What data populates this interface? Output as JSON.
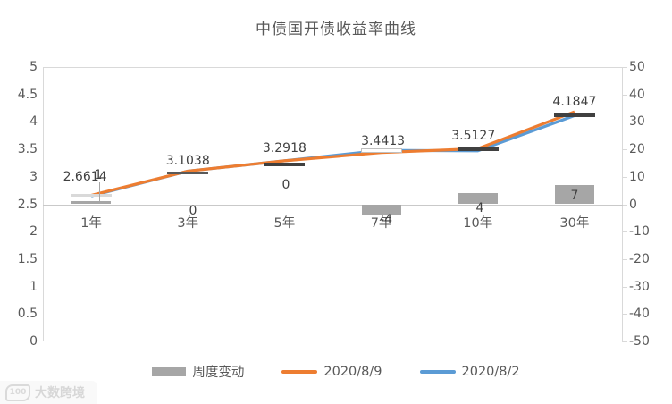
{
  "title": "中债国开债收益率曲线",
  "chart_data": {
    "type": "combo",
    "title": "中债国开债收益率曲线",
    "categories": [
      "1年",
      "3年",
      "5年",
      "7年",
      "10年",
      "30年"
    ],
    "left_axis": {
      "min": 0,
      "max": 5,
      "step": 0.5,
      "ticks": [
        "5",
        "4.5",
        "4",
        "3.5",
        "3",
        "2.5",
        "2",
        "1.5",
        "1",
        "0.5",
        "0"
      ]
    },
    "right_axis": {
      "min": -50,
      "max": 50,
      "step": 10,
      "ticks": [
        "50",
        "40",
        "30",
        "20",
        "10",
        "0",
        "-10",
        "-20",
        "-30",
        "-40",
        "-50"
      ]
    },
    "series": [
      {
        "name": "周度变动",
        "type": "bar",
        "axis": "right",
        "color": "#a6a6a6",
        "values": [
          1,
          0,
          0,
          -4,
          4,
          7
        ],
        "labels": [
          "1",
          "0",
          "0",
          "-4",
          "4",
          "7"
        ]
      },
      {
        "name": "2020/8/9",
        "type": "line",
        "axis": "left",
        "color": "#ed7d31",
        "values": [
          2.6614,
          3.1038,
          3.2918,
          3.4413,
          3.5127,
          4.1847
        ],
        "labels": [
          "2.6614",
          "3.1038",
          "3.2918",
          "3.4413",
          "3.5127",
          "4.1847"
        ]
      },
      {
        "name": "2020/8/2",
        "type": "line",
        "axis": "left",
        "color": "#5b9bd5",
        "values": [
          2.6514,
          3.1038,
          3.2918,
          3.4813,
          3.4727,
          4.1147
        ],
        "labels": []
      }
    ],
    "grid": false,
    "legend_position": "bottom"
  },
  "legend": {
    "items": [
      {
        "label": "周度变动",
        "swatch": "bar",
        "color": "#a6a6a6"
      },
      {
        "label": "2020/8/9",
        "swatch": "line",
        "color": "#ed7d31"
      },
      {
        "label": "2020/8/2",
        "swatch": "line",
        "color": "#5b9bd5"
      }
    ]
  },
  "watermark": {
    "logo": "100",
    "text": "大数跨境"
  },
  "colors": {
    "bar": "#a6a6a6",
    "line_orange": "#ed7d31",
    "line_blue": "#5b9bd5",
    "axis_text": "#595959",
    "label_text": "#404040",
    "plot_border": "#d9d9d9"
  }
}
